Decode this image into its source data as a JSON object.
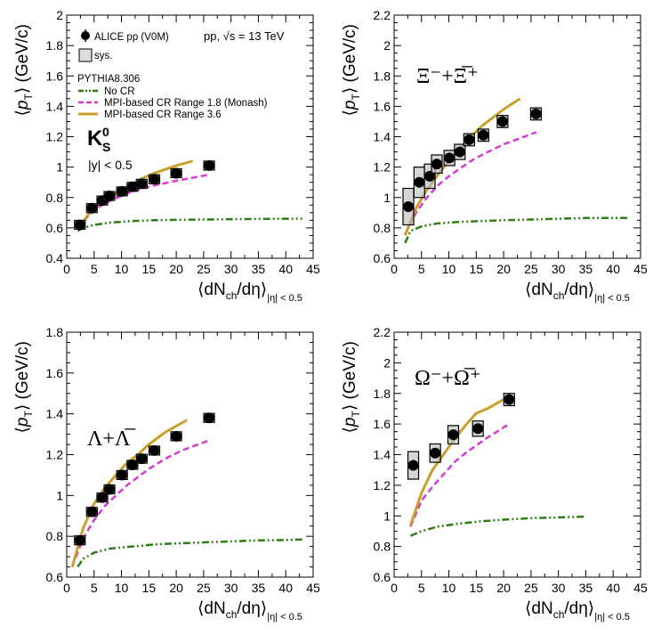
{
  "figure": {
    "energy_label": "pp, √s = 13 TeV",
    "legend": {
      "data_label": "ALICE pp (V0M)",
      "sys_label": "sys.",
      "generator": "PYTHIA8.306",
      "no_cr": "No CR",
      "monash": "MPI-based CR Range 1.8 (Monash)",
      "range36": "MPI-based CR Range 3.6"
    },
    "colors": {
      "data": "#000000",
      "no_cr": "#2e7d16",
      "monash": "#d63ad6",
      "range36": "#c9a02a"
    },
    "rapidity": "|y| < 0.5"
  },
  "chart_data": [
    {
      "type": "scatter",
      "id": "ks0",
      "particle_label": "K",
      "particle_sup": "0",
      "particle_sub": "S",
      "ylabel": "⟨p_T⟩ (GeV/c)",
      "xlabel": "⟨dN_ch/dη⟩_|η| < 0.5",
      "xlim": [
        0,
        45
      ],
      "ylim": [
        0.4,
        2.0
      ],
      "xticks": [
        0,
        5,
        10,
        15,
        20,
        25,
        30,
        35,
        40,
        45
      ],
      "yticks": [
        0.4,
        0.6,
        0.8,
        1.0,
        1.2,
        1.4,
        1.6,
        1.8,
        2.0
      ],
      "ytick_labels": [
        "0.4",
        "0.6",
        "0.8",
        "1",
        "1.2",
        "1.4",
        "1.6",
        "1.8",
        "2"
      ],
      "data": {
        "x": [
          2.4,
          4.6,
          6.5,
          7.8,
          10.1,
          12.0,
          13.7,
          16.0,
          20.0,
          26.0
        ],
        "y": [
          0.62,
          0.73,
          0.78,
          0.81,
          0.84,
          0.87,
          0.89,
          0.92,
          0.96,
          1.01
        ],
        "sys": [
          0.01,
          0.01,
          0.01,
          0.01,
          0.01,
          0.01,
          0.01,
          0.01,
          0.01,
          0.01
        ]
      },
      "series": [
        {
          "name": "No CR",
          "x": [
            2,
            3,
            5,
            8,
            12,
            16,
            20,
            25,
            30,
            35,
            40,
            43
          ],
          "y": [
            0.58,
            0.6,
            0.62,
            0.635,
            0.645,
            0.65,
            0.653,
            0.655,
            0.657,
            0.659,
            0.66,
            0.66
          ]
        },
        {
          "name": "MPI-based CR Range 1.8 (Monash)",
          "x": [
            2,
            4,
            6,
            8,
            10,
            12,
            14,
            16,
            20,
            26
          ],
          "y": [
            0.6,
            0.68,
            0.74,
            0.78,
            0.81,
            0.84,
            0.86,
            0.88,
            0.91,
            0.95
          ]
        },
        {
          "name": "MPI-based CR Range 3.6",
          "x": [
            2,
            4,
            6,
            8,
            10,
            12,
            14,
            16,
            20,
            23
          ],
          "y": [
            0.59,
            0.69,
            0.76,
            0.81,
            0.85,
            0.89,
            0.93,
            0.96,
            1.01,
            1.04
          ]
        }
      ]
    },
    {
      "type": "scatter",
      "id": "xi",
      "particle_label": "Ξ⁻+Ξ̅⁺",
      "ylabel": "⟨p_T⟩ (GeV/c)",
      "xlabel": "⟨dN_ch/dη⟩_|η| < 0.5",
      "xlim": [
        0,
        45
      ],
      "ylim": [
        0.6,
        2.2
      ],
      "xticks": [
        0,
        5,
        10,
        15,
        20,
        25,
        30,
        35,
        40,
        45
      ],
      "yticks": [
        0.6,
        0.8,
        1.0,
        1.2,
        1.4,
        1.6,
        1.8,
        2.0,
        2.2
      ],
      "ytick_labels": [
        "0.6",
        "0.8",
        "1",
        "1.2",
        "1.4",
        "1.6",
        "1.8",
        "2",
        "2.2"
      ],
      "data": {
        "x": [
          2.6,
          4.6,
          6.5,
          7.8,
          10.1,
          12.0,
          13.7,
          16.3,
          19.8,
          25.9
        ],
        "y": [
          0.94,
          1.1,
          1.14,
          1.22,
          1.26,
          1.3,
          1.38,
          1.41,
          1.5,
          1.55
        ],
        "sys": [
          0.12,
          0.1,
          0.08,
          0.06,
          0.05,
          0.05,
          0.04,
          0.04,
          0.04,
          0.04
        ]
      },
      "series": [
        {
          "name": "No CR",
          "x": [
            2,
            3,
            5,
            8,
            12,
            16,
            20,
            25,
            30,
            35,
            40,
            43
          ],
          "y": [
            0.7,
            0.78,
            0.81,
            0.83,
            0.84,
            0.845,
            0.85,
            0.855,
            0.86,
            0.865,
            0.865,
            0.865
          ]
        },
        {
          "name": "MPI-based CR Range 1.8 (Monash)",
          "x": [
            2,
            4,
            6,
            8,
            10,
            12,
            14,
            16,
            20,
            26
          ],
          "y": [
            0.76,
            0.9,
            1.0,
            1.08,
            1.14,
            1.19,
            1.24,
            1.28,
            1.35,
            1.43
          ]
        },
        {
          "name": "MPI-based CR Range 3.6",
          "x": [
            2,
            4,
            6,
            8,
            10,
            12,
            14,
            16,
            20,
            23
          ],
          "y": [
            0.75,
            0.93,
            1.05,
            1.15,
            1.24,
            1.32,
            1.4,
            1.47,
            1.58,
            1.65
          ]
        }
      ]
    },
    {
      "type": "scatter",
      "id": "lambda",
      "particle_label": "Λ+Λ̅",
      "ylabel": "⟨p_T⟩ (GeV/c)",
      "xlabel": "⟨dN_ch/dη⟩_|η| < 0.5",
      "xlim": [
        0,
        45
      ],
      "ylim": [
        0.6,
        1.8
      ],
      "xticks": [
        0,
        5,
        10,
        15,
        20,
        25,
        30,
        35,
        40,
        45
      ],
      "yticks": [
        0.6,
        0.8,
        1.0,
        1.2,
        1.4,
        1.6,
        1.8
      ],
      "ytick_labels": [
        "0.6",
        "0.8",
        "1",
        "1.2",
        "1.4",
        "1.6",
        "1.8"
      ],
      "data": {
        "x": [
          2.4,
          4.6,
          6.5,
          7.8,
          10.1,
          12.0,
          13.7,
          16.0,
          20.0,
          26.0
        ],
        "y": [
          0.78,
          0.92,
          0.99,
          1.03,
          1.1,
          1.15,
          1.18,
          1.22,
          1.29,
          1.38
        ],
        "sys": [
          0.02,
          0.02,
          0.02,
          0.02,
          0.02,
          0.02,
          0.02,
          0.02,
          0.02,
          0.02
        ]
      },
      "series": [
        {
          "name": "No CR",
          "x": [
            2,
            3,
            5,
            8,
            12,
            16,
            20,
            25,
            30,
            35,
            40,
            43
          ],
          "y": [
            0.65,
            0.69,
            0.72,
            0.74,
            0.75,
            0.76,
            0.765,
            0.77,
            0.775,
            0.78,
            0.782,
            0.784
          ]
        },
        {
          "name": "MPI-based CR Range 1.8 (Monash)",
          "x": [
            1,
            3,
            5,
            7,
            9,
            11,
            13,
            15,
            18,
            21,
            26
          ],
          "y": [
            0.65,
            0.79,
            0.88,
            0.95,
            1.0,
            1.05,
            1.09,
            1.13,
            1.18,
            1.22,
            1.27
          ]
        },
        {
          "name": "MPI-based CR Range 3.6",
          "x": [
            1,
            3,
            5,
            7,
            9,
            11,
            13,
            15,
            18,
            22
          ],
          "y": [
            0.65,
            0.84,
            0.96,
            1.04,
            1.1,
            1.16,
            1.2,
            1.25,
            1.31,
            1.37
          ]
        }
      ]
    },
    {
      "type": "scatter",
      "id": "omega",
      "particle_label": "Ω⁻+Ω̅⁺",
      "ylabel": "⟨p_T⟩ (GeV/c)",
      "xlabel": "⟨dN_ch/dη⟩_|η| < 0.5",
      "xlim": [
        0,
        45
      ],
      "ylim": [
        0.6,
        2.2
      ],
      "xticks": [
        0,
        5,
        10,
        15,
        20,
        25,
        30,
        35,
        40,
        45
      ],
      "yticks": [
        0.6,
        0.8,
        1.0,
        1.2,
        1.4,
        1.6,
        1.8,
        2.0,
        2.2
      ],
      "ytick_labels": [
        "0.6",
        "0.8",
        "1",
        "1.2",
        "1.4",
        "1.6",
        "1.8",
        "2",
        "2.2"
      ],
      "data": {
        "x": [
          3.5,
          7.5,
          10.8,
          15.3,
          21.0
        ],
        "y": [
          1.33,
          1.41,
          1.53,
          1.57,
          1.76
        ],
        "sys": [
          0.09,
          0.06,
          0.06,
          0.05,
          0.04
        ]
      },
      "series": [
        {
          "name": "No CR",
          "x": [
            3,
            5,
            8,
            12,
            16,
            20,
            25,
            30,
            35
          ],
          "y": [
            0.87,
            0.9,
            0.93,
            0.95,
            0.965,
            0.975,
            0.985,
            0.99,
            0.995
          ]
        },
        {
          "name": "MPI-based CR Range 1.8 (Monash)",
          "x": [
            3,
            5,
            7,
            9,
            11,
            13,
            15,
            17,
            21
          ],
          "y": [
            0.93,
            1.1,
            1.19,
            1.27,
            1.35,
            1.41,
            1.46,
            1.51,
            1.6
          ]
        },
        {
          "name": "MPI-based CR Range 3.6",
          "x": [
            3,
            5,
            7,
            9,
            11,
            13,
            15,
            17,
            20
          ],
          "y": [
            0.94,
            1.15,
            1.3,
            1.4,
            1.5,
            1.59,
            1.67,
            1.7,
            1.76
          ]
        }
      ]
    }
  ]
}
